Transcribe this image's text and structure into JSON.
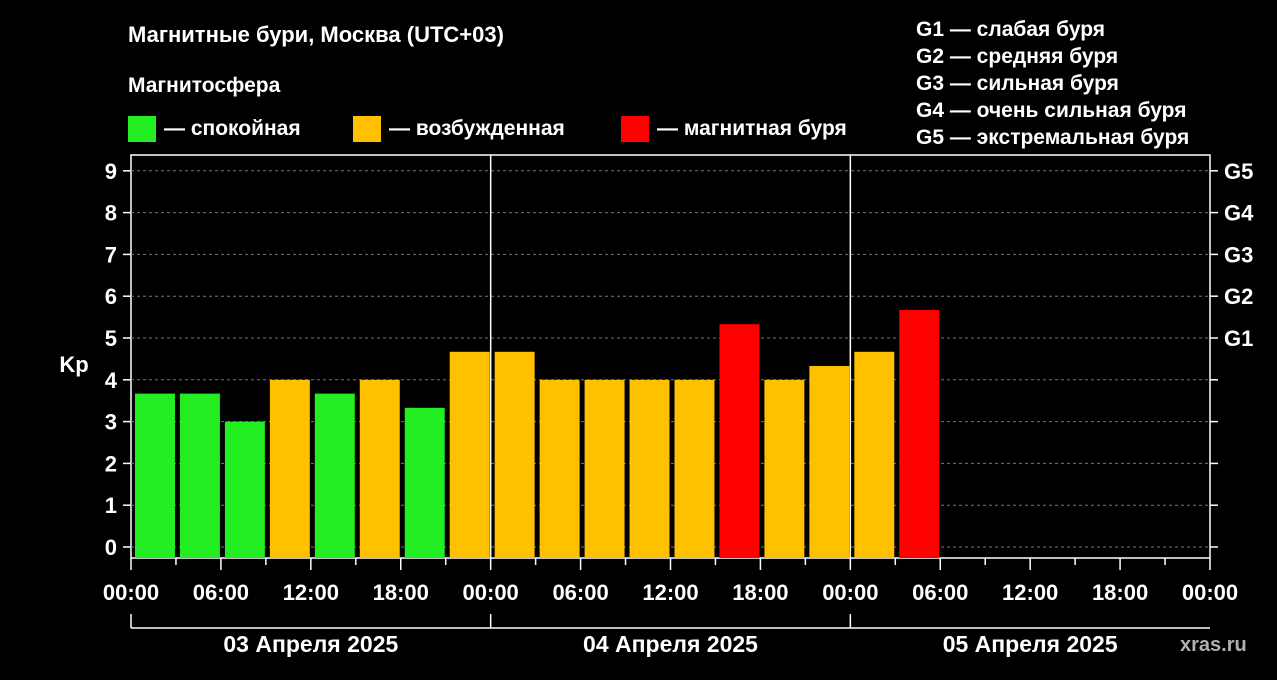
{
  "title": "Магнитные бури, Москва (UTC+03)",
  "legend": {
    "heading": "Магнитосфера",
    "items": [
      {
        "label": "— спокойная",
        "color": "#22ee22"
      },
      {
        "label": "— возбужденная",
        "color": "#ffc000"
      },
      {
        "label": "— магнитная буря",
        "color": "#ff0000"
      }
    ]
  },
  "g_scale": [
    "G1 — слабая буря",
    "G2 — средняя буря",
    "G3 — сильная буря",
    "G4 — очень сильная буря",
    "G5 — экстремальная буря"
  ],
  "watermark": "xras.ru",
  "chart_data": {
    "type": "bar",
    "ylabel": "Kp",
    "ylim": [
      0,
      9
    ],
    "yticks": [
      "0",
      "1",
      "2",
      "3",
      "4",
      "5",
      "6",
      "7",
      "8",
      "9"
    ],
    "right_ticks": [
      {
        "kp": 5,
        "label": "G1"
      },
      {
        "kp": 6,
        "label": "G2"
      },
      {
        "kp": 7,
        "label": "G3"
      },
      {
        "kp": 8,
        "label": "G4"
      },
      {
        "kp": 9,
        "label": "G5"
      }
    ],
    "grid": "dashed horizontal at integer Kp",
    "x_tick_labels": [
      "00:00",
      "06:00",
      "12:00",
      "18:00",
      "00:00",
      "06:00",
      "12:00",
      "18:00",
      "00:00",
      "06:00",
      "12:00",
      "18:00",
      "00:00"
    ],
    "dates": [
      "03 Апреля 2025",
      "04 Апреля 2025",
      "05 Апреля 2025"
    ],
    "slots_per_day": 8,
    "values": [
      3.67,
      3.67,
      3.0,
      4.0,
      3.67,
      4.0,
      3.33,
      4.67,
      4.67,
      4.0,
      4.0,
      4.0,
      4.0,
      5.33,
      4.0,
      4.33,
      4.67,
      5.67
    ],
    "categories": [
      "quiet",
      "quiet",
      "quiet",
      "active",
      "quiet",
      "active",
      "quiet",
      "active",
      "active",
      "active",
      "active",
      "active",
      "active",
      "storm",
      "active",
      "active",
      "active",
      "storm"
    ],
    "colors": {
      "quiet": "#22ee22",
      "active": "#ffc000",
      "storm": "#ff0000"
    }
  }
}
